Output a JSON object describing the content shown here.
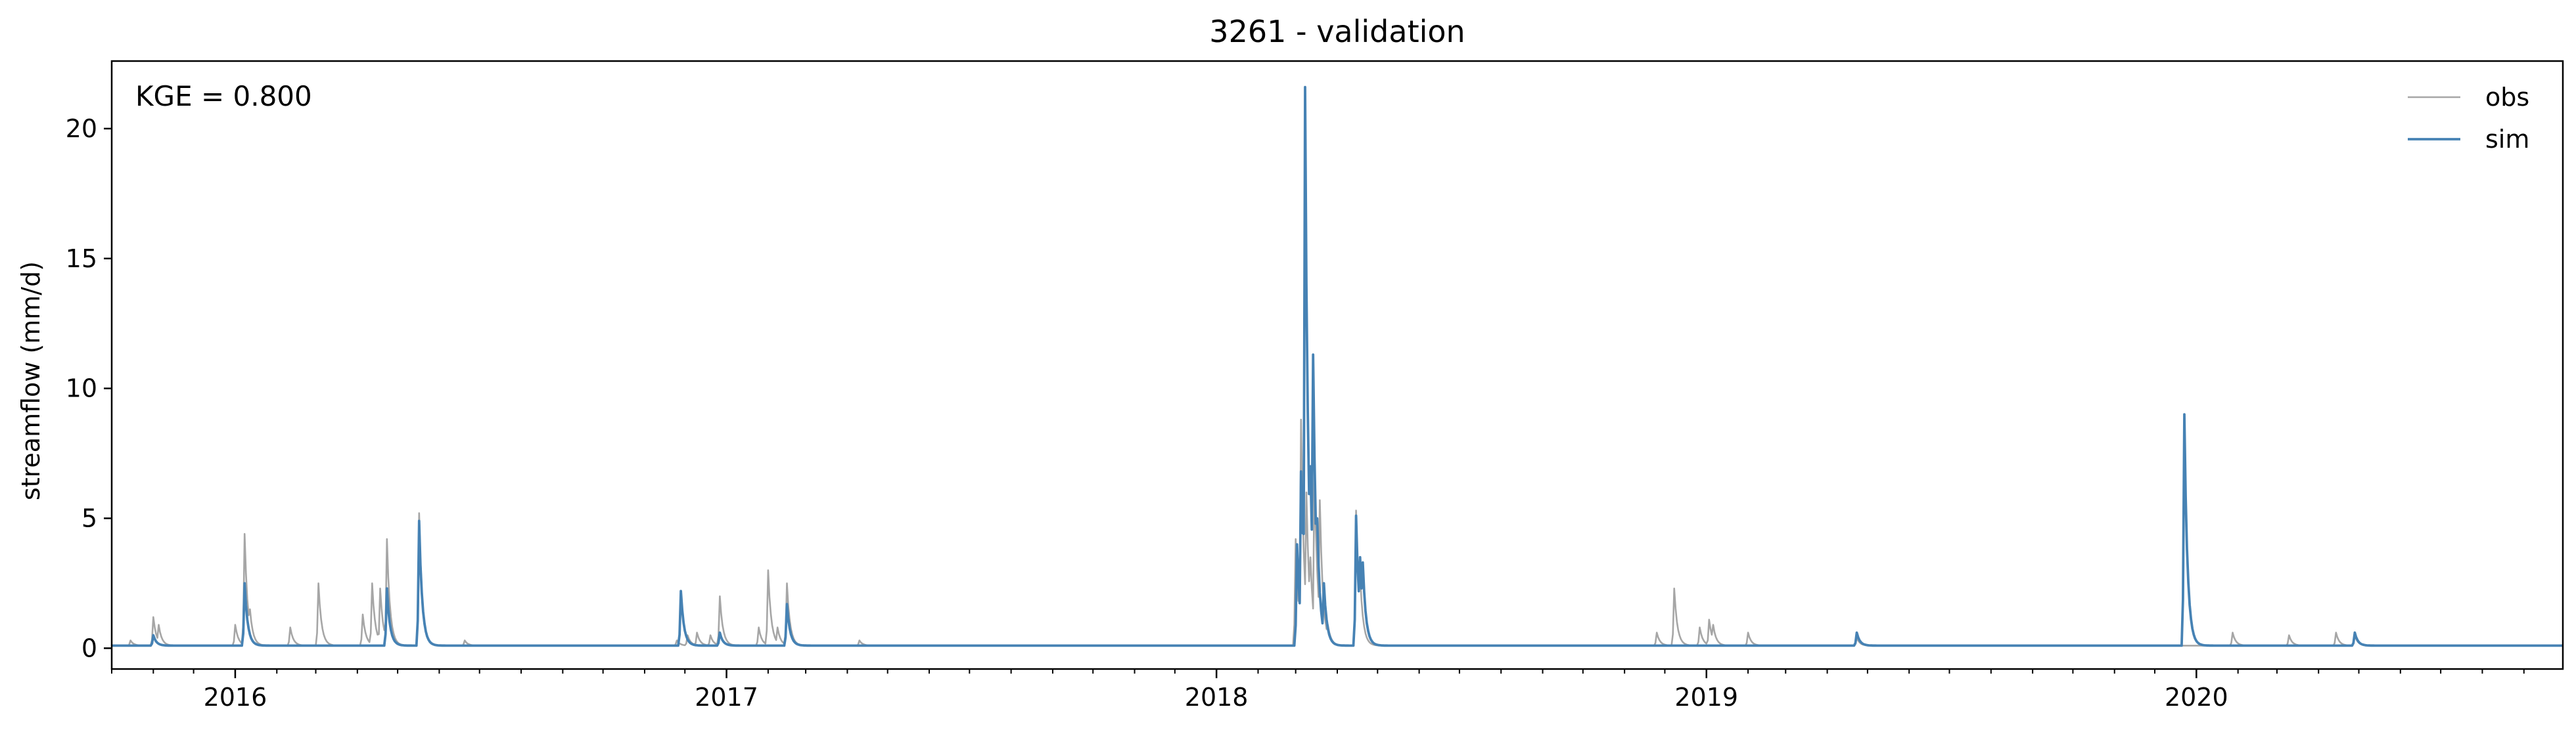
{
  "chart_data": {
    "type": "line",
    "title": "3261 - validation",
    "xlabel": "",
    "ylabel": "streamflow (mm/d)",
    "x_range": [
      "2015-10-01",
      "2020-09-30"
    ],
    "ylim": [
      -0.8,
      22.6
    ],
    "y_ticks": [
      0,
      5,
      10,
      15,
      20
    ],
    "x_ticks": [
      {
        "date": "2016-01-01",
        "label": "2016"
      },
      {
        "date": "2017-01-01",
        "label": "2017"
      },
      {
        "date": "2018-01-01",
        "label": "2018"
      },
      {
        "date": "2019-01-01",
        "label": "2019"
      },
      {
        "date": "2020-01-01",
        "label": "2020"
      }
    ],
    "grid": false,
    "legend_position": "top-right",
    "annotation": "KGE = 0.800",
    "baseflow": 0.1,
    "series": [
      {
        "name": "obs",
        "color": "#a6a6a6",
        "peaks": [
          [
            "2015-10-15",
            0.3
          ],
          [
            "2015-11-01",
            1.2
          ],
          [
            "2015-11-05",
            0.9
          ],
          [
            "2016-01-01",
            0.9
          ],
          [
            "2016-01-08",
            4.4
          ],
          [
            "2016-01-12",
            1.5
          ],
          [
            "2016-02-11",
            0.8
          ],
          [
            "2016-03-03",
            2.5
          ],
          [
            "2016-04-05",
            1.3
          ],
          [
            "2016-04-12",
            2.5
          ],
          [
            "2016-04-18",
            2.3
          ],
          [
            "2016-04-23",
            4.2
          ],
          [
            "2016-05-17",
            5.2
          ],
          [
            "2016-06-20",
            0.3
          ],
          [
            "2016-11-25",
            0.3
          ],
          [
            "2016-12-03",
            0.5
          ],
          [
            "2016-12-10",
            0.6
          ],
          [
            "2016-12-20",
            0.5
          ],
          [
            "2016-12-27",
            2.0
          ],
          [
            "2017-01-25",
            0.8
          ],
          [
            "2017-02-01",
            3.0
          ],
          [
            "2017-02-08",
            0.8
          ],
          [
            "2017-02-15",
            2.5
          ],
          [
            "2017-04-10",
            0.3
          ],
          [
            "2018-03-01",
            4.2
          ],
          [
            "2018-03-05",
            8.8
          ],
          [
            "2018-03-09",
            6.0
          ],
          [
            "2018-03-12",
            3.5
          ],
          [
            "2018-03-15",
            7.0
          ],
          [
            "2018-03-19",
            5.7
          ],
          [
            "2018-03-25",
            0.9
          ],
          [
            "2018-04-15",
            5.3
          ],
          [
            "2018-04-18",
            2.8
          ],
          [
            "2018-11-25",
            0.6
          ],
          [
            "2018-12-08",
            2.3
          ],
          [
            "2018-12-27",
            0.8
          ],
          [
            "2019-01-03",
            1.1
          ],
          [
            "2019-01-06",
            0.9
          ],
          [
            "2019-02-01",
            0.6
          ],
          [
            "2019-04-23",
            0.4
          ],
          [
            "2020-01-28",
            0.6
          ],
          [
            "2020-03-10",
            0.5
          ],
          [
            "2020-04-14",
            0.6
          ],
          [
            "2020-04-28",
            0.5
          ]
        ]
      },
      {
        "name": "sim",
        "color": "#4682b4",
        "peaks": [
          [
            "2015-11-01",
            0.5
          ],
          [
            "2016-01-08",
            2.5
          ],
          [
            "2016-04-23",
            2.3
          ],
          [
            "2016-05-17",
            4.9
          ],
          [
            "2016-11-28",
            2.2
          ],
          [
            "2016-12-27",
            0.6
          ],
          [
            "2017-02-15",
            1.7
          ],
          [
            "2018-03-02",
            4.0
          ],
          [
            "2018-03-05",
            6.8
          ],
          [
            "2018-03-08",
            21.6
          ],
          [
            "2018-03-10",
            5.0
          ],
          [
            "2018-03-12",
            7.0
          ],
          [
            "2018-03-14",
            11.3
          ],
          [
            "2018-03-17",
            5.0
          ],
          [
            "2018-03-22",
            2.5
          ],
          [
            "2018-04-15",
            5.1
          ],
          [
            "2018-04-18",
            3.5
          ],
          [
            "2018-04-20",
            3.3
          ],
          [
            "2019-04-23",
            0.6
          ],
          [
            "2019-12-23",
            9.0
          ],
          [
            "2020-04-28",
            0.6
          ]
        ]
      }
    ]
  }
}
